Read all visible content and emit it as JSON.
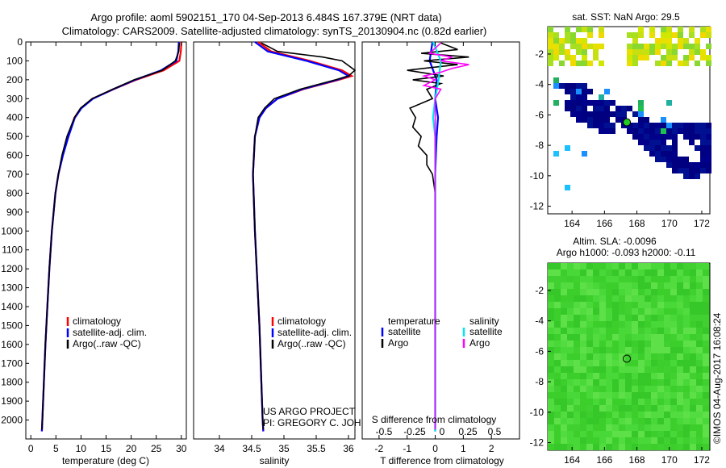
{
  "header": {
    "line1": "Argo profile: aoml 5902151_170 04-Sep-2013 6.484S 167.379E (NRT data)",
    "line2": "Climatology: CARS2009. Satellite-adjusted climatology: synTS_20130904.nc (0.82d earlier)"
  },
  "colors": {
    "climatology": "#ff0000",
    "satellite": "#0000ff",
    "argo": "#000000",
    "sal_satellite": "#00e5ee",
    "sal_argo": "#ff00ff"
  },
  "chart_data": [
    {
      "id": "temperature",
      "type": "line",
      "xlabel": "temperature (deg C)",
      "ylim": [
        2100,
        0
      ],
      "xlim": [
        -1,
        31
      ],
      "x_ticks": [
        0,
        5,
        10,
        15,
        20,
        25,
        30
      ],
      "y_ticks": [
        0,
        100,
        200,
        300,
        400,
        500,
        600,
        700,
        800,
        900,
        1000,
        1100,
        1200,
        1300,
        1400,
        1500,
        1600,
        1700,
        1800,
        1900,
        2000
      ],
      "legend": [
        "climatology",
        "satellite-adj. clim.",
        "Argo(..raw -QC)"
      ],
      "series": [
        {
          "name": "climatology",
          "depth": [
            0,
            50,
            100,
            150,
            200,
            250,
            300,
            350,
            400,
            500,
            600,
            700,
            800,
            1000,
            1200,
            1400,
            1600,
            1800,
            2000,
            2060
          ],
          "values": [
            30,
            29.9,
            29.6,
            26.5,
            21,
            16.5,
            12.3,
            10,
            8.7,
            7.4,
            6.3,
            5.5,
            4.9,
            4.2,
            3.7,
            3.3,
            2.9,
            2.6,
            2.3,
            2.2
          ]
        },
        {
          "name": "satellite-adj. clim.",
          "depth": [
            0,
            50,
            100,
            150,
            200,
            250,
            300,
            350,
            400,
            500,
            600,
            700,
            800,
            1000,
            1200,
            1400,
            1600,
            1800,
            2000,
            2060
          ],
          "values": [
            29.5,
            29.4,
            29.0,
            26.0,
            20.8,
            16.4,
            12.4,
            10.1,
            8.8,
            7.5,
            6.4,
            5.5,
            4.9,
            4.2,
            3.7,
            3.3,
            2.9,
            2.6,
            2.3,
            2.2
          ]
        },
        {
          "name": "Argo(..raw -QC)",
          "depth": [
            5,
            50,
            100,
            150,
            200,
            250,
            300,
            350,
            400,
            500,
            600,
            700,
            800,
            1000,
            1200,
            1400,
            1600,
            1800,
            2000,
            2050
          ],
          "values": [
            29.6,
            29.5,
            28.8,
            26.2,
            20.6,
            16.3,
            12.2,
            9.9,
            8.7,
            7.2,
            6.2,
            5.5,
            4.9,
            4.2,
            3.7,
            3.3,
            2.9,
            2.6,
            2.3,
            2.2
          ]
        }
      ]
    },
    {
      "id": "salinity",
      "type": "line",
      "xlabel": "salinity",
      "ylim": [
        2100,
        0
      ],
      "xlim": [
        33.6,
        36.1
      ],
      "x_ticks": [
        34,
        34.5,
        35,
        35.5,
        36
      ],
      "x_tick_labels": [
        "34",
        "34.5",
        "35",
        "35.5",
        "36"
      ],
      "legend": [
        "climatology",
        "satellite-adj. clim.",
        "Argo(..raw -QC)"
      ],
      "series": [
        {
          "name": "climatology",
          "depth": [
            0,
            50,
            100,
            150,
            180,
            200,
            250,
            300,
            350,
            400,
            500,
            700,
            1000,
            1500,
            2000,
            2060
          ],
          "values": [
            34.6,
            34.8,
            35.4,
            35.9,
            36.05,
            35.85,
            35.3,
            34.9,
            34.72,
            34.62,
            34.55,
            34.52,
            34.55,
            34.62,
            34.67,
            34.68
          ]
        },
        {
          "name": "satellite-adj. clim.",
          "depth": [
            0,
            50,
            100,
            150,
            180,
            200,
            250,
            300,
            350,
            400,
            500,
            700,
            1000,
            1500,
            2000,
            2060
          ],
          "values": [
            34.55,
            34.75,
            35.35,
            35.85,
            36.0,
            35.82,
            35.28,
            34.9,
            34.72,
            34.62,
            34.55,
            34.52,
            34.55,
            34.62,
            34.67,
            34.68
          ]
        },
        {
          "name": "Argo(..raw -QC)",
          "depth": [
            5,
            50,
            80,
            100,
            150,
            180,
            200,
            250,
            300,
            350,
            400,
            500,
            700,
            1000,
            1500,
            2000,
            2050
          ],
          "values": [
            34.65,
            34.9,
            35.6,
            35.9,
            36.1,
            36.0,
            35.8,
            35.25,
            34.85,
            34.7,
            34.6,
            34.55,
            34.52,
            34.55,
            34.62,
            34.67,
            34.68
          ]
        }
      ],
      "annotation": [
        "US ARGO PROJECT",
        "PI: GREGORY C. JOHNSON"
      ]
    },
    {
      "id": "difference",
      "type": "line",
      "xlabel": "T difference from climatology",
      "top_label": "S difference from climatology",
      "ylim": [
        2100,
        0
      ],
      "xlim": [
        -2.6,
        3.0
      ],
      "x_ticks": [
        -2,
        -1,
        0,
        1,
        2
      ],
      "x_tick_labels": [
        "-2",
        "-1",
        "0",
        "1",
        "2"
      ],
      "top_ticks": [
        "-0.5",
        "-0.25",
        "0",
        "0.25",
        "0.5"
      ],
      "legend_title_t": "temperature",
      "legend_title_s": "salinity",
      "legend": [
        "satellite",
        "Argo",
        "satellite",
        "Argo"
      ],
      "series": [
        {
          "name": "T satellite",
          "depth": [
            0,
            100,
            200,
            300,
            400,
            500,
            700,
            1000,
            1500,
            2000,
            2060
          ],
          "values": [
            -0.1,
            -0.2,
            0.05,
            0,
            0.1,
            0.05,
            0,
            0,
            0,
            0,
            0
          ]
        },
        {
          "name": "T Argo",
          "depth": [
            5,
            40,
            60,
            80,
            100,
            120,
            150,
            180,
            200,
            220,
            250,
            300,
            350,
            400,
            450,
            500,
            550,
            600,
            650,
            700,
            800,
            1000,
            1500,
            2000,
            2050
          ],
          "values": [
            0.2,
            0.8,
            -0.5,
            1.2,
            -0.4,
            0.8,
            -1.0,
            0.3,
            -0.8,
            0.2,
            -0.3,
            -0.1,
            -0.9,
            -0.7,
            -0.8,
            -0.5,
            -0.6,
            -0.3,
            -0.3,
            -0.1,
            0,
            0,
            0,
            0,
            0
          ]
        },
        {
          "name": "S satellite",
          "depth": [
            0,
            100,
            200,
            300,
            400,
            500,
            700,
            1000,
            1500,
            2000,
            2060
          ],
          "values": [
            -0.02,
            0.05,
            0.03,
            0,
            -0.02,
            0,
            0,
            0,
            0,
            0,
            0
          ]
        },
        {
          "name": "S Argo",
          "depth": [
            5,
            60,
            80,
            100,
            120,
            140,
            160,
            180,
            200,
            230,
            250,
            300,
            400,
            500,
            700,
            1000,
            1500,
            2000,
            2050
          ],
          "values": [
            0.05,
            -0.05,
            0.15,
            0.05,
            0.3,
            0.15,
            0.05,
            -0.1,
            0,
            -0.1,
            0.05,
            0,
            0,
            0,
            0,
            0,
            0,
            0,
            0
          ]
        }
      ]
    },
    {
      "id": "sst_map",
      "type": "heatmap",
      "title": "sat. SST: NaN Argo: 29.5",
      "x_ticks": [
        164,
        166,
        168,
        170,
        172
      ],
      "y_ticks": [
        -2,
        -4,
        -6,
        -8,
        -10,
        -12
      ],
      "xlim": [
        162.5,
        172.5
      ],
      "ylim": [
        -12.5,
        -0.2
      ],
      "argo_position": [
        167.379,
        -6.484
      ]
    },
    {
      "id": "sla_map",
      "type": "heatmap",
      "title_line1": "Altim. SLA: -0.0096",
      "title_line2": "Argo h1000: -0.093 h2000: -0.11",
      "x_ticks": [
        164,
        166,
        168,
        170,
        172
      ],
      "y_ticks": [
        -2,
        -4,
        -6,
        -8,
        -10,
        -12
      ],
      "xlim": [
        162.5,
        172.5
      ],
      "ylim": [
        -12.5,
        -0.2
      ],
      "argo_position": [
        167.379,
        -6.484
      ]
    }
  ],
  "footer": {
    "copyright": "©IMOS 04-Aug-2017 16:08:24"
  }
}
